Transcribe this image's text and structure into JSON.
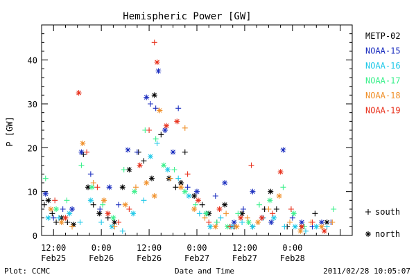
{
  "chart_data": {
    "type": "scatter",
    "title": "Hemispheric Power [GW]",
    "ylabel": "P [GW]",
    "xlabel": "Date and Time",
    "footer_left": "Plot: CCMC",
    "footer_right": "2011/02/28 10:05:07",
    "x_unit": "datetime",
    "xlim": [
      "2011-02-25 09:00",
      "2011-02-28 15:00"
    ],
    "ylim": [
      0,
      48
    ],
    "y_ticks": [
      0,
      10,
      20,
      30,
      40
    ],
    "x_ticks": [
      {
        "time": "2011-02-25 12:00",
        "line1": "12:00",
        "line2": "Feb25"
      },
      {
        "time": "2011-02-26 00:00",
        "line1": "0:00",
        "line2": "Feb26"
      },
      {
        "time": "2011-02-26 12:00",
        "line1": "12:00",
        "line2": "Feb26"
      },
      {
        "time": "2011-02-27 00:00",
        "line1": "0:00",
        "line2": "Feb27"
      },
      {
        "time": "2011-02-27 12:00",
        "line1": "12:00",
        "line2": "Feb27"
      },
      {
        "time": "2011-02-28 00:00",
        "line1": "0:00",
        "line2": "Feb28"
      }
    ],
    "marker_legend": [
      {
        "marker": "plus",
        "label": "south"
      },
      {
        "marker": "star",
        "label": "north"
      }
    ],
    "series": [
      {
        "name": "METP-02",
        "color": "#000000",
        "points": [
          [
            "2011-02-25 09:40",
            7.0,
            "plus"
          ],
          [
            "2011-02-25 10:40",
            8.0,
            "star"
          ],
          [
            "2011-02-25 11:40",
            5.0,
            "plus"
          ],
          [
            "2011-02-25 12:40",
            3.0,
            "plus"
          ],
          [
            "2011-02-25 14:00",
            4.0,
            "star"
          ],
          [
            "2011-02-25 15:30",
            3.0,
            "plus"
          ],
          [
            "2011-02-25 17:00",
            2.5,
            "star"
          ],
          [
            "2011-02-25 19:30",
            18.5,
            "plus"
          ],
          [
            "2011-02-25 20:40",
            11.0,
            "star"
          ],
          [
            "2011-02-25 22:00",
            7.0,
            "plus"
          ],
          [
            "2011-02-25 23:30",
            5.0,
            "star"
          ],
          [
            "2011-02-26 01:40",
            4.0,
            "plus"
          ],
          [
            "2011-02-26 03:20",
            3.0,
            "star"
          ],
          [
            "2011-02-26 05:20",
            11.0,
            "star"
          ],
          [
            "2011-02-26 07:00",
            15.0,
            "star"
          ],
          [
            "2011-02-26 09:20",
            19.0,
            "plus"
          ],
          [
            "2011-02-26 10:40",
            17.0,
            "plus"
          ],
          [
            "2011-02-26 12:40",
            13.0,
            "star"
          ],
          [
            "2011-02-26 13:20",
            32.0,
            "star"
          ],
          [
            "2011-02-26 15:00",
            23.0,
            "plus"
          ],
          [
            "2011-02-26 17:00",
            13.0,
            "star"
          ],
          [
            "2011-02-26 18:40",
            11.0,
            "plus"
          ],
          [
            "2011-02-26 20:00",
            12.0,
            "star"
          ],
          [
            "2011-02-26 21:00",
            19.0,
            "plus"
          ],
          [
            "2011-02-26 23:20",
            9.0,
            "star"
          ],
          [
            "2011-02-27 01:20",
            7.0,
            "plus"
          ],
          [
            "2011-02-27 03:00",
            5.0,
            "star"
          ],
          [
            "2011-02-27 05:00",
            3.0,
            "plus"
          ],
          [
            "2011-02-27 07:00",
            7.0,
            "star"
          ],
          [
            "2011-02-27 09:20",
            2.0,
            "plus"
          ],
          [
            "2011-02-27 11:20",
            5.0,
            "star"
          ],
          [
            "2011-02-27 14:00",
            2.0,
            "plus"
          ],
          [
            "2011-02-27 17:00",
            6.0,
            "plus"
          ],
          [
            "2011-02-27 18:30",
            10.0,
            "star"
          ],
          [
            "2011-02-27 20:00",
            6.0,
            "plus"
          ],
          [
            "2011-02-27 22:40",
            2.0,
            "plus"
          ],
          [
            "2011-02-28 02:20",
            2.0,
            "star"
          ],
          [
            "2011-02-28 05:40",
            5.0,
            "plus"
          ],
          [
            "2011-02-28 08:40",
            3.0,
            "star"
          ]
        ]
      },
      {
        "name": "NOAA-15",
        "color": "#1c2fbf",
        "points": [
          [
            "2011-02-25 10:00",
            9.5,
            "star"
          ],
          [
            "2011-02-25 12:00",
            4.0,
            "plus"
          ],
          [
            "2011-02-25 14:20",
            6.0,
            "plus"
          ],
          [
            "2011-02-25 16:40",
            6.0,
            "star"
          ],
          [
            "2011-02-25 19:00",
            19.0,
            "star"
          ],
          [
            "2011-02-25 21:20",
            14.0,
            "plus"
          ],
          [
            "2011-02-25 23:40",
            6.0,
            "plus"
          ],
          [
            "2011-02-26 02:00",
            11.0,
            "star"
          ],
          [
            "2011-02-26 04:20",
            7.0,
            "plus"
          ],
          [
            "2011-02-26 06:40",
            19.5,
            "star"
          ],
          [
            "2011-02-26 09:00",
            19.0,
            "plus"
          ],
          [
            "2011-02-26 11:20",
            31.5,
            "star"
          ],
          [
            "2011-02-26 12:20",
            30.0,
            "plus"
          ],
          [
            "2011-02-26 13:40",
            29.0,
            "plus"
          ],
          [
            "2011-02-26 14:20",
            37.5,
            "star"
          ],
          [
            "2011-02-26 16:00",
            24.0,
            "star"
          ],
          [
            "2011-02-26 18:00",
            19.0,
            "star"
          ],
          [
            "2011-02-26 19:20",
            29.0,
            "plus"
          ],
          [
            "2011-02-26 21:40",
            11.0,
            "plus"
          ],
          [
            "2011-02-27 00:00",
            10.0,
            "star"
          ],
          [
            "2011-02-27 02:20",
            5.0,
            "plus"
          ],
          [
            "2011-02-27 04:40",
            9.0,
            "plus"
          ],
          [
            "2011-02-27 07:00",
            12.0,
            "star"
          ],
          [
            "2011-02-27 09:20",
            3.0,
            "star"
          ],
          [
            "2011-02-27 11:40",
            6.0,
            "plus"
          ],
          [
            "2011-02-27 14:00",
            10.0,
            "star"
          ],
          [
            "2011-02-27 16:20",
            4.0,
            "plus"
          ],
          [
            "2011-02-27 18:40",
            3.0,
            "star"
          ],
          [
            "2011-02-27 21:40",
            19.5,
            "star"
          ],
          [
            "2011-02-28 00:00",
            4.0,
            "plus"
          ],
          [
            "2011-02-28 02:20",
            3.0,
            "star"
          ],
          [
            "2011-02-28 05:00",
            2.0,
            "plus"
          ],
          [
            "2011-02-28 07:20",
            3.0,
            "star"
          ],
          [
            "2011-02-28 09:40",
            3.0,
            "plus"
          ]
        ]
      },
      {
        "name": "NOAA-16",
        "color": "#1fc8e8",
        "points": [
          [
            "2011-02-25 10:40",
            4.0,
            "star"
          ],
          [
            "2011-02-25 13:20",
            4.0,
            "plus"
          ],
          [
            "2011-02-25 16:00",
            5.0,
            "star"
          ],
          [
            "2011-02-25 18:40",
            3.0,
            "plus"
          ],
          [
            "2011-02-25 21:20",
            8.0,
            "star"
          ],
          [
            "2011-02-26 00:00",
            3.0,
            "plus"
          ],
          [
            "2011-02-26 02:40",
            2.0,
            "star"
          ],
          [
            "2011-02-26 05:20",
            1.0,
            "plus"
          ],
          [
            "2011-02-26 08:00",
            5.0,
            "star"
          ],
          [
            "2011-02-26 10:40",
            8.0,
            "plus"
          ],
          [
            "2011-02-26 12:20",
            18.0,
            "star"
          ],
          [
            "2011-02-26 14:00",
            21.0,
            "plus"
          ],
          [
            "2011-02-26 16:40",
            15.0,
            "star"
          ],
          [
            "2011-02-26 19:20",
            13.0,
            "plus"
          ],
          [
            "2011-02-26 22:00",
            9.0,
            "star"
          ],
          [
            "2011-02-27 00:40",
            5.0,
            "plus"
          ],
          [
            "2011-02-27 03:20",
            2.0,
            "star"
          ],
          [
            "2011-02-27 06:00",
            4.0,
            "plus"
          ],
          [
            "2011-02-27 08:40",
            2.0,
            "star"
          ],
          [
            "2011-02-27 11:20",
            3.0,
            "plus"
          ],
          [
            "2011-02-27 14:00",
            2.0,
            "star"
          ],
          [
            "2011-02-27 16:40",
            4.0,
            "plus"
          ],
          [
            "2011-02-27 19:20",
            4.0,
            "star"
          ],
          [
            "2011-02-27 22:00",
            2.0,
            "plus"
          ],
          [
            "2011-02-28 00:40",
            2.0,
            "star"
          ],
          [
            "2011-02-28 03:20",
            1.0,
            "plus"
          ],
          [
            "2011-02-28 06:00",
            2.0,
            "star"
          ],
          [
            "2011-02-28 08:40",
            2.0,
            "plus"
          ]
        ]
      },
      {
        "name": "NOAA-17",
        "color": "#3cf08c",
        "points": [
          [
            "2011-02-25 10:00",
            13.0,
            "plus"
          ],
          [
            "2011-02-25 12:40",
            6.0,
            "star"
          ],
          [
            "2011-02-25 15:20",
            8.0,
            "plus"
          ],
          [
            "2011-02-25 19:00",
            16.0,
            "plus"
          ],
          [
            "2011-02-25 21:40",
            11.0,
            "star"
          ],
          [
            "2011-02-26 00:20",
            7.0,
            "plus"
          ],
          [
            "2011-02-26 03:00",
            4.0,
            "star"
          ],
          [
            "2011-02-26 05:40",
            15.0,
            "plus"
          ],
          [
            "2011-02-26 08:20",
            10.0,
            "star"
          ],
          [
            "2011-02-26 11:00",
            24.0,
            "plus"
          ],
          [
            "2011-02-26 13:40",
            22.0,
            "plus"
          ],
          [
            "2011-02-26 15:40",
            16.0,
            "star"
          ],
          [
            "2011-02-26 18:20",
            15.0,
            "plus"
          ],
          [
            "2011-02-26 21:00",
            10.0,
            "star"
          ],
          [
            "2011-02-26 23:40",
            7.0,
            "plus"
          ],
          [
            "2011-02-27 02:20",
            5.0,
            "star"
          ],
          [
            "2011-02-27 05:00",
            3.0,
            "plus"
          ],
          [
            "2011-02-27 07:40",
            2.0,
            "star"
          ],
          [
            "2011-02-27 10:20",
            5.0,
            "plus"
          ],
          [
            "2011-02-27 13:00",
            3.0,
            "star"
          ],
          [
            "2011-02-27 15:40",
            7.0,
            "plus"
          ],
          [
            "2011-02-27 18:20",
            8.0,
            "star"
          ],
          [
            "2011-02-27 21:40",
            11.0,
            "plus"
          ],
          [
            "2011-02-28 00:20",
            5.0,
            "star"
          ],
          [
            "2011-02-28 03:00",
            2.0,
            "plus"
          ],
          [
            "2011-02-28 10:20",
            6.0,
            "plus"
          ]
        ]
      },
      {
        "name": "NOAA-18",
        "color": "#f0902a",
        "points": [
          [
            "2011-02-25 11:20",
            6.0,
            "star"
          ],
          [
            "2011-02-25 14:00",
            3.0,
            "star"
          ],
          [
            "2011-02-25 16:40",
            2.0,
            "plus"
          ],
          [
            "2011-02-25 19:20",
            21.0,
            "star"
          ],
          [
            "2011-02-25 22:00",
            12.0,
            "plus"
          ],
          [
            "2011-02-26 00:40",
            8.0,
            "star"
          ],
          [
            "2011-02-26 03:20",
            2.0,
            "plus"
          ],
          [
            "2011-02-26 06:00",
            7.0,
            "star"
          ],
          [
            "2011-02-26 08:40",
            11.0,
            "plus"
          ],
          [
            "2011-02-26 11:20",
            12.0,
            "star"
          ],
          [
            "2011-02-26 13:20",
            9.0,
            "star"
          ],
          [
            "2011-02-26 14:40",
            28.5,
            "star"
          ],
          [
            "2011-02-26 17:20",
            13.0,
            "plus"
          ],
          [
            "2011-02-26 20:00",
            11.0,
            "star"
          ],
          [
            "2011-02-26 21:00",
            24.5,
            "plus"
          ],
          [
            "2011-02-26 23:20",
            6.0,
            "star"
          ],
          [
            "2011-02-27 02:00",
            4.0,
            "plus"
          ],
          [
            "2011-02-27 04:40",
            2.0,
            "star"
          ],
          [
            "2011-02-27 07:20",
            5.0,
            "plus"
          ],
          [
            "2011-02-27 10:00",
            2.0,
            "star"
          ],
          [
            "2011-02-27 12:40",
            4.0,
            "plus"
          ],
          [
            "2011-02-27 15:20",
            3.0,
            "star"
          ],
          [
            "2011-02-27 18:00",
            6.0,
            "plus"
          ],
          [
            "2011-02-27 20:40",
            9.0,
            "star"
          ],
          [
            "2011-02-27 23:20",
            3.0,
            "plus"
          ],
          [
            "2011-02-28 02:00",
            1.0,
            "star"
          ],
          [
            "2011-02-28 04:40",
            3.0,
            "plus"
          ],
          [
            "2011-02-28 07:20",
            2.0,
            "star"
          ],
          [
            "2011-02-28 10:00",
            3.0,
            "plus"
          ]
        ]
      },
      {
        "name": "NOAA-19",
        "color": "#e8311c",
        "points": [
          [
            "2011-02-25 12:20",
            8.0,
            "plus"
          ],
          [
            "2011-02-25 15:00",
            4.0,
            "star"
          ],
          [
            "2011-02-25 18:20",
            32.5,
            "star"
          ],
          [
            "2011-02-25 20:20",
            19.0,
            "plus"
          ],
          [
            "2011-02-25 23:00",
            11.0,
            "plus"
          ],
          [
            "2011-02-26 01:40",
            5.0,
            "star"
          ],
          [
            "2011-02-26 04:20",
            3.0,
            "plus"
          ],
          [
            "2011-02-26 07:00",
            6.0,
            "plus"
          ],
          [
            "2011-02-26 09:40",
            16.0,
            "star"
          ],
          [
            "2011-02-26 12:00",
            24.0,
            "plus"
          ],
          [
            "2011-02-26 13:20",
            44.0,
            "plus"
          ],
          [
            "2011-02-26 14:00",
            39.5,
            "star"
          ],
          [
            "2011-02-26 16:20",
            25.0,
            "star"
          ],
          [
            "2011-02-26 19:00",
            26.0,
            "star"
          ],
          [
            "2011-02-26 21:40",
            14.0,
            "plus"
          ],
          [
            "2011-02-27 00:20",
            8.0,
            "star"
          ],
          [
            "2011-02-27 03:00",
            3.0,
            "plus"
          ],
          [
            "2011-02-27 05:40",
            6.0,
            "star"
          ],
          [
            "2011-02-27 08:20",
            2.0,
            "plus"
          ],
          [
            "2011-02-27 11:00",
            4.0,
            "star"
          ],
          [
            "2011-02-27 13:40",
            16.0,
            "plus"
          ],
          [
            "2011-02-27 16:20",
            4.0,
            "star"
          ],
          [
            "2011-02-27 19:00",
            5.0,
            "plus"
          ],
          [
            "2011-02-27 21:00",
            14.5,
            "star"
          ],
          [
            "2011-02-27 23:40",
            6.0,
            "plus"
          ],
          [
            "2011-02-28 02:20",
            2.0,
            "star"
          ],
          [
            "2011-02-28 05:00",
            3.0,
            "plus"
          ],
          [
            "2011-02-28 08:00",
            1.0,
            "star"
          ]
        ]
      }
    ]
  }
}
